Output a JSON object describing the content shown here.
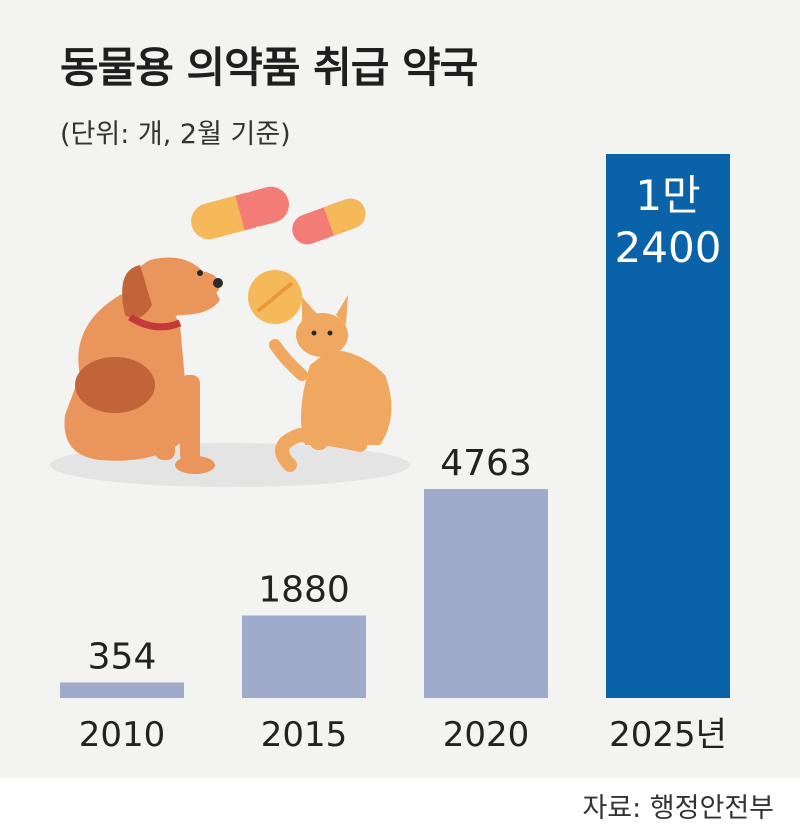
{
  "title": "동물용 의약품 취급 약국",
  "subtitle": "(단위: 개, 2월 기준)",
  "source": "자료: 행정안전부",
  "colors": {
    "panel": "#f3f3f1",
    "bar": "#9eabca",
    "highlight": "#0a62a8",
    "text": "#222222",
    "highlight_text": "#ffffff"
  },
  "illustration": {
    "dog": "dog-icon",
    "cat": "cat-icon",
    "pills": "pill-capsule-icon",
    "tablet": "tablet-icon"
  },
  "chart_data": {
    "type": "bar",
    "categories": [
      "2010",
      "2015",
      "2020",
      "2025년"
    ],
    "values": [
      354,
      1880,
      4763,
      12400
    ],
    "value_labels": [
      "354",
      "1880",
      "4763",
      [
        "1만",
        "2400"
      ]
    ],
    "highlight_index": 3,
    "title": "동물용 의약품 취급 약국",
    "xlabel": "",
    "ylabel": "",
    "ylim": [
      0,
      12400
    ],
    "grid": false,
    "legend": "none"
  }
}
